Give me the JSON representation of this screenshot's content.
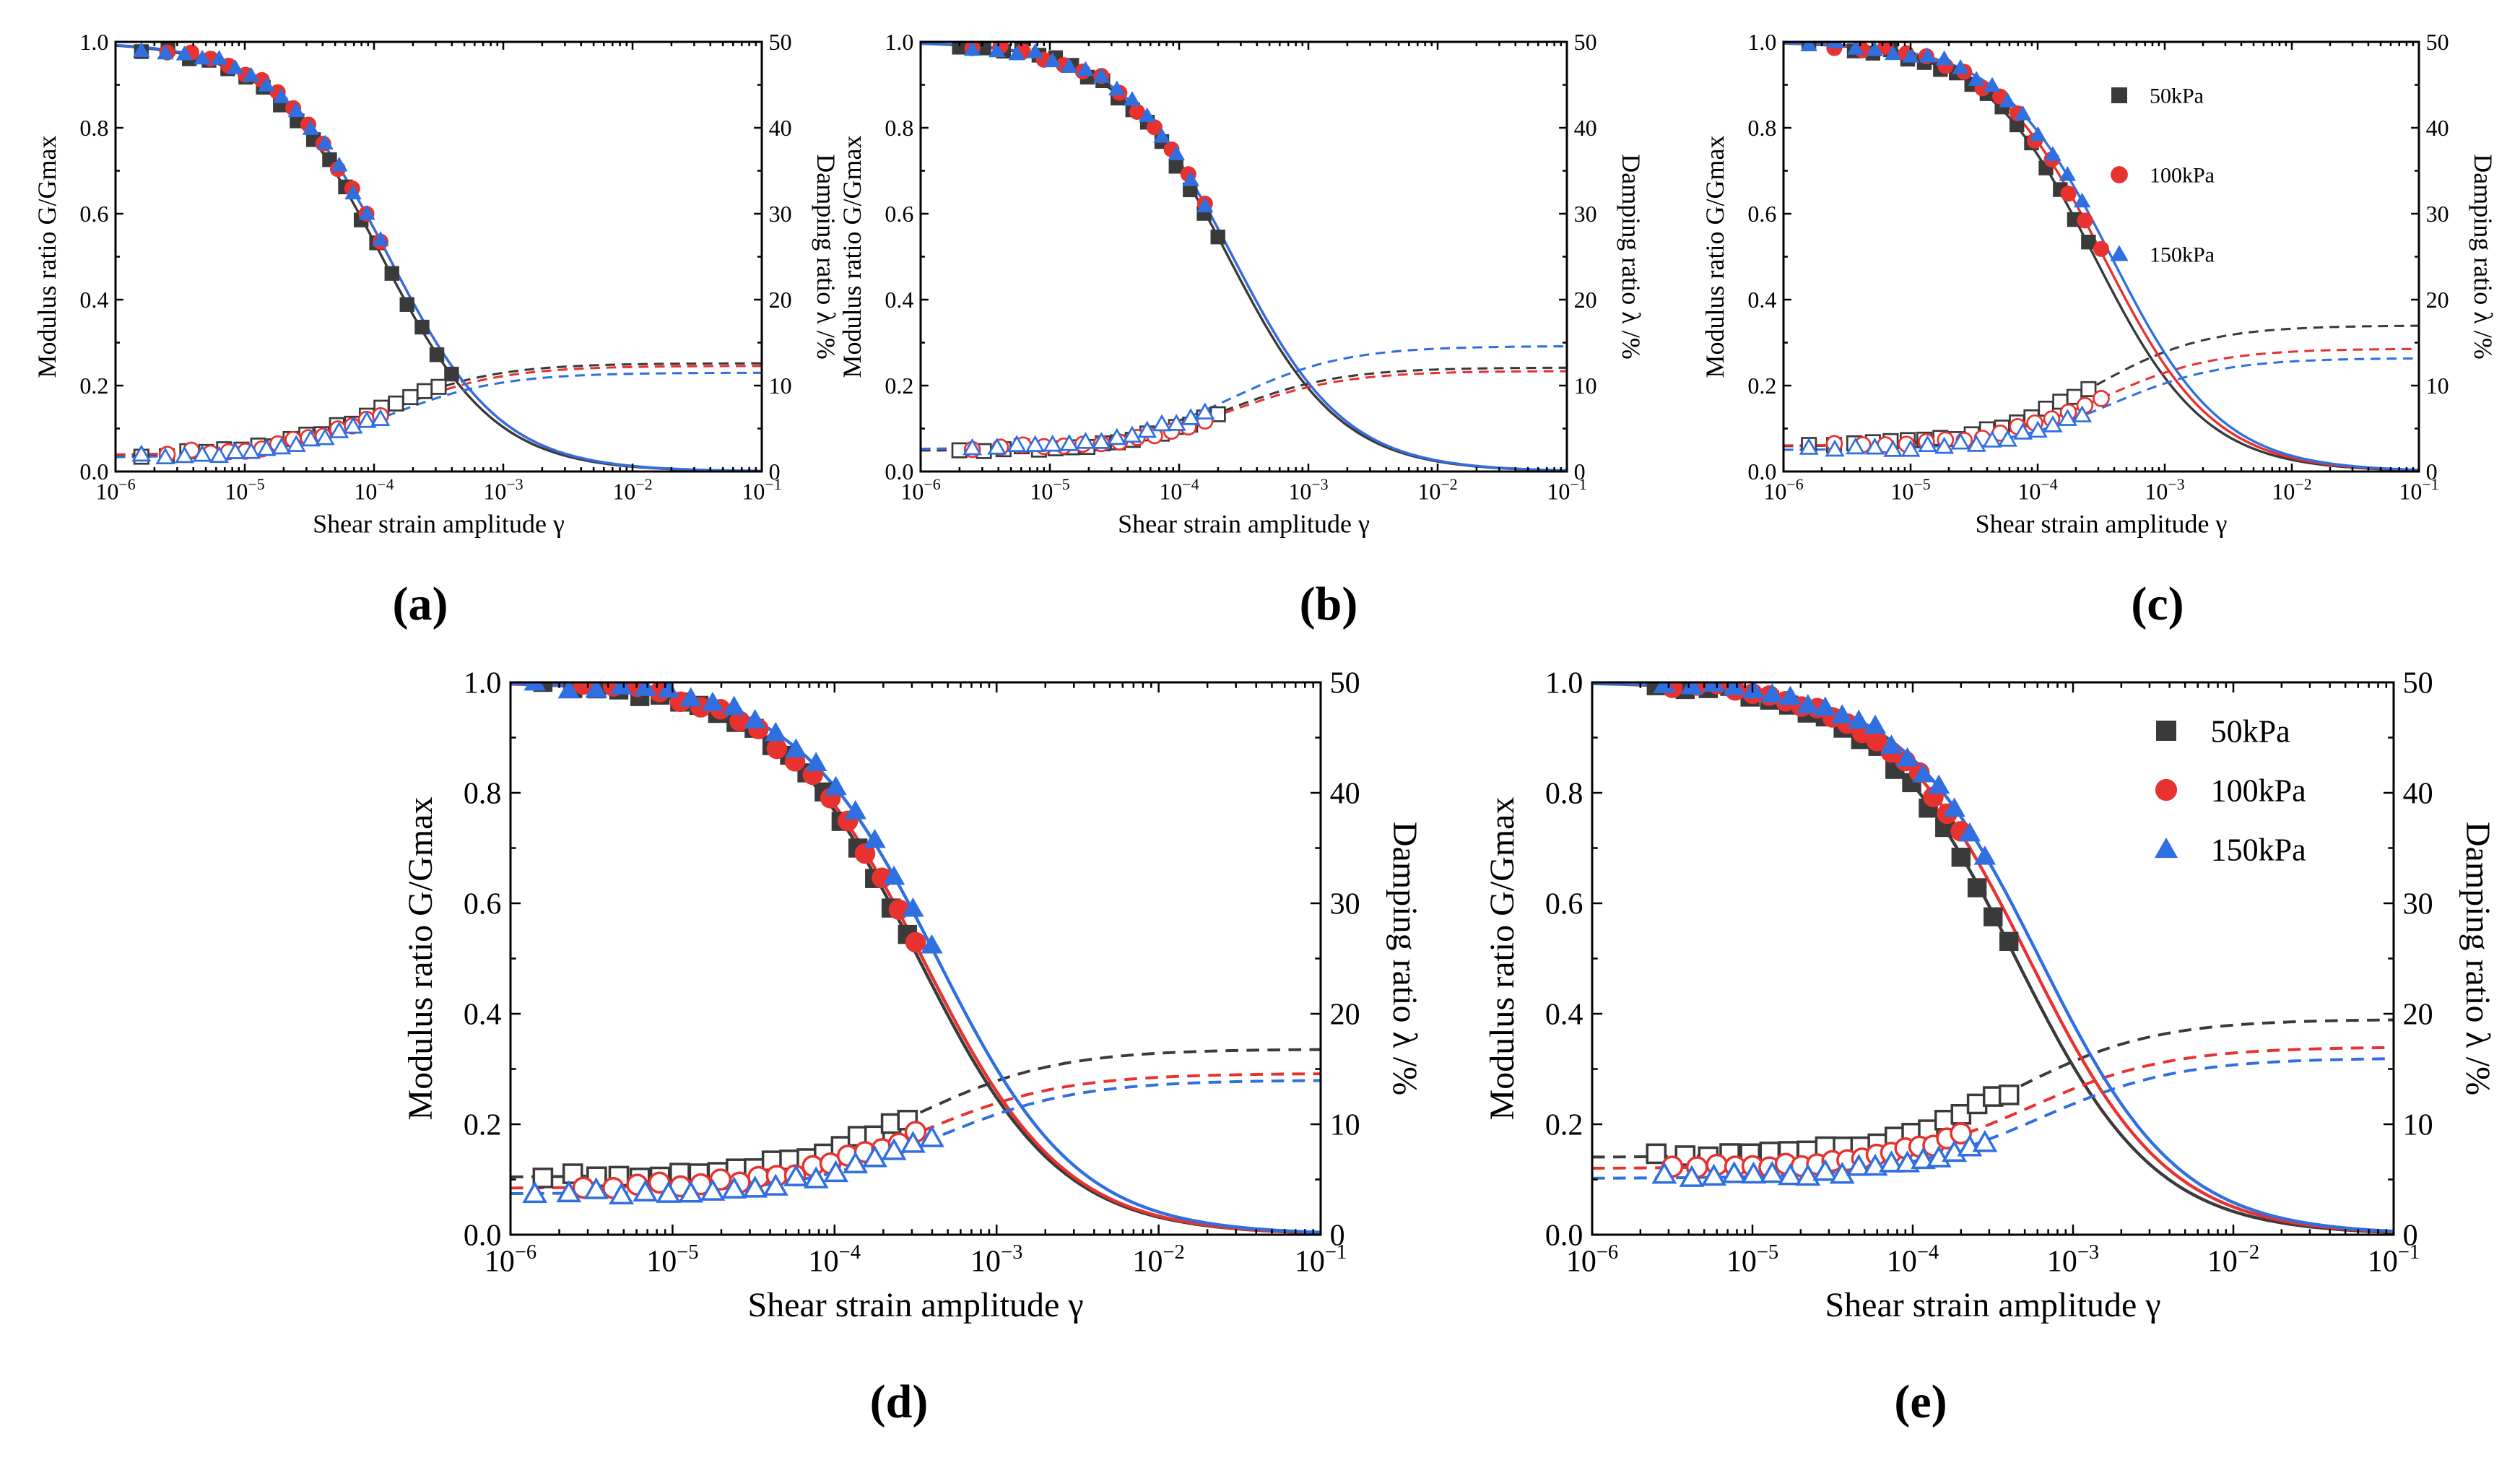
{
  "figure": {
    "y2_label": "Damping ratio λ /%"
  },
  "chart_data": [
    {
      "type": "scatter",
      "panel": "a",
      "caption": "(a)",
      "xlabel": "Shear strain amplitude γ",
      "ylabel": "Modulus ratio G/Gmax",
      "y2label": "Damping ratio λ /%",
      "xscale": "log",
      "xlim": [
        1e-06,
        0.1
      ],
      "ylim": [
        0,
        1.0
      ],
      "y2lim": [
        0,
        50
      ],
      "x_ticks": [
        1e-06,
        1e-05,
        0.0001,
        0.001,
        0.01,
        0.1
      ],
      "x_tick_labels": [
        "10⁻⁶",
        "10⁻⁵",
        "10⁻⁴",
        "10⁻³",
        "10⁻²",
        "10⁻¹"
      ],
      "y_ticks": [
        0,
        0.2,
        0.4,
        0.6,
        0.8,
        1.0
      ],
      "y_tick_labels": [
        "0.0",
        "0.2",
        "0.4",
        "0.6",
        "0.8",
        "1.0"
      ],
      "y2_ticks": [
        0,
        10,
        20,
        30,
        40,
        50
      ],
      "y2_tick_labels": [
        "0",
        "10",
        "20",
        "30",
        "40",
        "50"
      ],
      "legend_visible": false,
      "legend": [
        "50kPa",
        "100kPa",
        "150kPa"
      ],
      "series": [
        {
          "name": "50kPa",
          "color": "#3a3a3a",
          "marker": "square",
          "gamma_ref": 0.000115,
          "a": 1.0,
          "dmin": 1.8,
          "dmax": 12.6,
          "g_log_range": [
            -5.8,
            -3.4
          ],
          "d_log_range": [
            -5.8,
            -3.5
          ],
          "n": 19
        },
        {
          "name": "100kPa",
          "color": "#e8322f",
          "marker": "circle",
          "gamma_ref": 0.00013,
          "a": 1.0,
          "dmin": 1.9,
          "dmax": 12.3,
          "g_log_range": [
            -5.6,
            -3.95
          ],
          "d_log_range": [
            -5.6,
            -3.95
          ],
          "n": 14
        },
        {
          "name": "150kPa",
          "color": "#2f6fe0",
          "marker": "triangle",
          "gamma_ref": 0.00013,
          "a": 1.0,
          "dmin": 1.6,
          "dmax": 11.5,
          "g_log_range": [
            -5.8,
            -3.95
          ],
          "d_log_range": [
            -5.8,
            -3.95
          ],
          "n": 16
        }
      ]
    },
    {
      "type": "scatter",
      "panel": "b",
      "caption": "(b)",
      "xlabel": "Shear strain amplitude γ",
      "ylabel": "Modulus ratio G/Gmax",
      "y2label": "Damping ratio λ /%",
      "xscale": "log",
      "xlim": [
        1e-06,
        0.1
      ],
      "ylim": [
        0,
        1.0
      ],
      "y2lim": [
        0,
        50
      ],
      "x_ticks": [
        1e-06,
        1e-05,
        0.0001,
        0.001,
        0.01,
        0.1
      ],
      "x_tick_labels": [
        "10⁻⁶",
        "10⁻⁵",
        "10⁻⁴",
        "10⁻³",
        "10⁻²",
        "10⁻¹"
      ],
      "y_ticks": [
        0,
        0.2,
        0.4,
        0.6,
        0.8,
        1.0
      ],
      "y_tick_labels": [
        "0.0",
        "0.2",
        "0.4",
        "0.6",
        "0.8",
        "1.0"
      ],
      "y2_ticks": [
        0,
        10,
        20,
        30,
        40,
        50
      ],
      "y2_tick_labels": [
        "0",
        "10",
        "20",
        "30",
        "40",
        "50"
      ],
      "legend_visible": false,
      "legend": [
        "50kPa",
        "100kPa",
        "150kPa"
      ],
      "series": [
        {
          "name": "50kPa",
          "color": "#3a3a3a",
          "marker": "square",
          "gamma_ref": 0.00024,
          "a": 1.0,
          "dmin": 2.4,
          "dmax": 12.1,
          "g_log_range": [
            -5.7,
            -3.7
          ],
          "d_log_range": [
            -5.7,
            -3.7
          ],
          "n": 17
        },
        {
          "name": "100kPa",
          "color": "#e8322f",
          "marker": "circle",
          "gamma_ref": 0.00026,
          "a": 1.0,
          "dmin": 2.6,
          "dmax": 11.7,
          "g_log_range": [
            -5.6,
            -3.8
          ],
          "d_log_range": [
            -5.6,
            -3.8
          ],
          "n": 13
        },
        {
          "name": "150kPa",
          "color": "#2f6fe0",
          "marker": "triangle",
          "gamma_ref": 0.00026,
          "a": 1.0,
          "dmin": 2.6,
          "dmax": 14.6,
          "g_log_range": [
            -5.6,
            -3.8
          ],
          "d_log_range": [
            -5.6,
            -3.8
          ],
          "n": 15
        }
      ]
    },
    {
      "type": "scatter",
      "panel": "c",
      "caption": "(c)",
      "xlabel": "Shear strain amplitude γ",
      "ylabel": "Modulus ratio G/Gmax",
      "y2label": "Damping ratio λ /%",
      "xscale": "log",
      "xlim": [
        1e-06,
        0.1
      ],
      "ylim": [
        0,
        1.0
      ],
      "y2lim": [
        0,
        50
      ],
      "x_ticks": [
        1e-06,
        1e-05,
        0.0001,
        0.001,
        0.01,
        0.1
      ],
      "x_tick_labels": [
        "10⁻⁶",
        "10⁻⁵",
        "10⁻⁴",
        "10⁻³",
        "10⁻²",
        "10⁻¹"
      ],
      "y_ticks": [
        0,
        0.2,
        0.4,
        0.6,
        0.8,
        1.0
      ],
      "y_tick_labels": [
        "0.0",
        "0.2",
        "0.4",
        "0.6",
        "0.8",
        "1.0"
      ],
      "y2_ticks": [
        0,
        10,
        20,
        30,
        40,
        50
      ],
      "y2_tick_labels": [
        "0",
        "10",
        "20",
        "30",
        "40",
        "50"
      ],
      "legend_visible": true,
      "legend_position": "top-right",
      "legend": [
        "50kPa",
        "100kPa",
        "150kPa"
      ],
      "series": [
        {
          "name": "50kPa",
          "color": "#3a3a3a",
          "marker": "square",
          "gamma_ref": 0.00028,
          "a": 1.0,
          "dmin": 2.9,
          "dmax": 17.0,
          "g_log_range": [
            -5.8,
            -3.6
          ],
          "d_log_range": [
            -5.8,
            -3.6
          ],
          "n": 18
        },
        {
          "name": "100kPa",
          "color": "#e8322f",
          "marker": "circle",
          "gamma_ref": 0.00033,
          "a": 1.0,
          "dmin": 3.0,
          "dmax": 14.3,
          "g_log_range": [
            -5.6,
            -3.5
          ],
          "d_log_range": [
            -5.6,
            -3.5
          ],
          "n": 15
        },
        {
          "name": "150kPa",
          "color": "#2f6fe0",
          "marker": "triangle",
          "gamma_ref": 0.00038,
          "a": 1.0,
          "dmin": 2.5,
          "dmax": 13.2,
          "g_log_range": [
            -5.8,
            -3.65
          ],
          "d_log_range": [
            -5.8,
            -3.65
          ],
          "n": 17
        }
      ]
    },
    {
      "type": "scatter",
      "panel": "d",
      "caption": "(d)",
      "xlabel": "Shear strain amplitude γ",
      "ylabel": "Modulus ratio G/Gmax",
      "y2label": "Damping ratio λ /%",
      "xscale": "log",
      "xlim": [
        1e-06,
        0.1
      ],
      "ylim": [
        0,
        1.0
      ],
      "y2lim": [
        0,
        50
      ],
      "x_ticks": [
        1e-06,
        1e-05,
        0.0001,
        0.001,
        0.01,
        0.1
      ],
      "x_tick_labels": [
        "10⁻⁶",
        "10⁻⁵",
        "10⁻⁴",
        "10⁻³",
        "10⁻²",
        "10⁻¹"
      ],
      "y_ticks": [
        0,
        0.2,
        0.4,
        0.6,
        0.8,
        1.0
      ],
      "y_tick_labels": [
        "0.0",
        "0.2",
        "0.4",
        "0.6",
        "0.8",
        "1.0"
      ],
      "y2_ticks": [
        0,
        10,
        20,
        30,
        40,
        50
      ],
      "y2_tick_labels": [
        "0",
        "10",
        "20",
        "30",
        "40",
        "50"
      ],
      "legend_visible": false,
      "legend": [
        "50kPa",
        "100kPa",
        "150kPa"
      ],
      "series": [
        {
          "name": "50kPa",
          "color": "#3a3a3a",
          "marker": "square",
          "gamma_ref": 0.00033,
          "a": 1.0,
          "dmin": 5.2,
          "dmax": 16.8,
          "g_log_range": [
            -5.8,
            -3.55
          ],
          "d_log_range": [
            -5.8,
            -3.55
          ],
          "n": 20
        },
        {
          "name": "100kPa",
          "color": "#e8322f",
          "marker": "circle",
          "gamma_ref": 0.00035,
          "a": 1.0,
          "dmin": 4.2,
          "dmax": 14.6,
          "g_log_range": [
            -5.55,
            -3.5
          ],
          "d_log_range": [
            -5.55,
            -3.5
          ],
          "n": 18
        },
        {
          "name": "150kPa",
          "color": "#2f6fe0",
          "marker": "triangle",
          "gamma_ref": 0.00043,
          "a": 1.0,
          "dmin": 3.7,
          "dmax": 14.0,
          "g_log_range": [
            -5.85,
            -3.4
          ],
          "d_log_range": [
            -5.85,
            -3.4
          ],
          "n": 19
        }
      ]
    },
    {
      "type": "scatter",
      "panel": "e",
      "caption": "(e)",
      "xlabel": "Shear strain amplitude γ",
      "ylabel": "Modulus ratio G/Gmax",
      "y2label": "Damping ratio λ /%",
      "xscale": "log",
      "xlim": [
        1e-06,
        0.1
      ],
      "ylim": [
        0,
        1.0
      ],
      "y2lim": [
        0,
        50
      ],
      "x_ticks": [
        1e-06,
        1e-05,
        0.0001,
        0.001,
        0.01,
        0.1
      ],
      "x_tick_labels": [
        "10⁻⁶",
        "10⁻⁵",
        "10⁻⁴",
        "10⁻³",
        "10⁻²",
        "10⁻¹"
      ],
      "y_ticks": [
        0,
        0.2,
        0.4,
        0.6,
        0.8,
        1.0
      ],
      "y_tick_labels": [
        "0.0",
        "0.2",
        "0.4",
        "0.6",
        "0.8",
        "1.0"
      ],
      "y2_ticks": [
        0,
        10,
        20,
        30,
        40,
        50
      ],
      "y2_tick_labels": [
        "0",
        "10",
        "20",
        "30",
        "40",
        "50"
      ],
      "legend_visible": true,
      "legend_position": "top-right",
      "legend": [
        "50kPa",
        "100kPa",
        "150kPa"
      ],
      "series": [
        {
          "name": "50kPa",
          "color": "#3a3a3a",
          "marker": "square",
          "gamma_ref": 0.00044,
          "a": 1.0,
          "dmin": 7.0,
          "dmax": 19.5,
          "g_log_range": [
            -5.6,
            -3.4
          ],
          "d_log_range": [
            -5.6,
            -3.4
          ],
          "n": 20
        },
        {
          "name": "100kPa",
          "color": "#e8322f",
          "marker": "circle",
          "gamma_ref": 0.00053,
          "a": 1.0,
          "dmin": 6.0,
          "dmax": 17.0,
          "g_log_range": [
            -5.5,
            -3.7
          ],
          "d_log_range": [
            -5.5,
            -3.7
          ],
          "n": 19
        },
        {
          "name": "150kPa",
          "color": "#2f6fe0",
          "marker": "triangle",
          "gamma_ref": 0.00062,
          "a": 1.0,
          "dmin": 5.1,
          "dmax": 16.0,
          "g_log_range": [
            -5.55,
            -3.55
          ],
          "d_log_range": [
            -5.55,
            -3.55
          ],
          "n": 19
        }
      ]
    }
  ]
}
